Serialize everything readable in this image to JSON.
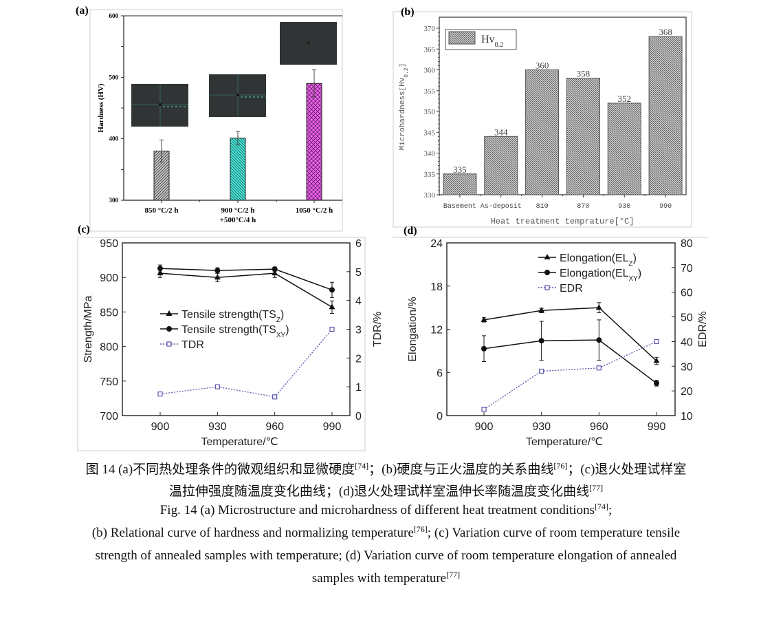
{
  "chart_data": [
    {
      "panel_label": "(a)",
      "type": "bar",
      "categories": [
        [
          "850 °C/2 h"
        ],
        [
          "900 °C/2 h",
          "+500°C/4 h"
        ],
        [
          "1050 °C/2 h"
        ]
      ],
      "values": [
        380,
        401,
        490
      ],
      "errors": [
        18,
        11,
        22
      ],
      "bar_colors": [
        "#b4b4b4",
        "#4ee6d8",
        "#f060f0"
      ],
      "patterns": [
        "diagonal",
        "diagonal-reverse",
        "crosshatch"
      ],
      "insets": [
        "micrograph",
        "micrograph",
        "micrograph"
      ],
      "ylabel": "Hardness (HV)",
      "ylim": [
        300,
        600
      ],
      "yticks": [
        300,
        400,
        500,
        600
      ]
    },
    {
      "panel_label": "(b)",
      "type": "bar",
      "categories": [
        "Basement",
        "As-deposit",
        "810",
        "870",
        "930",
        "990"
      ],
      "values": [
        335,
        344,
        360,
        358,
        352,
        368
      ],
      "data_labels": [
        "335",
        "344",
        "360",
        "358",
        "352",
        "368"
      ],
      "legend": {
        "name": "Hv",
        "sub": "0.2",
        "position": "top-left"
      },
      "xlabel": "Heat treatment temprature[°C]",
      "ylabel": {
        "main": "Microhardness[Hv",
        "sub": "0.2",
        "end": "]"
      },
      "ylim": [
        330,
        370
      ],
      "yticks": [
        330,
        335,
        340,
        345,
        350,
        355,
        360,
        365,
        370
      ],
      "bar_color": "#9a9a9a"
    },
    {
      "panel_label": "(c)",
      "type": "line",
      "x": [
        900,
        930,
        960,
        990
      ],
      "xlabel": "Temperature/℃",
      "ylabel": "Strength/MPa",
      "ylabel_right": "TDR/%",
      "ylim": [
        700,
        950
      ],
      "yticks": [
        700,
        750,
        800,
        850,
        900,
        950
      ],
      "ylim_right": [
        0,
        6
      ],
      "yticks_right": [
        0,
        1,
        2,
        3,
        4,
        5,
        6
      ],
      "legend_position": "center-left",
      "series": [
        {
          "name": "Tensile strength(TS",
          "sub": "Z",
          "end": ")",
          "marker": "triangle",
          "axis": "left",
          "values": [
            906,
            900,
            906,
            857
          ],
          "errors": [
            6,
            6,
            6,
            9
          ]
        },
        {
          "name": "Tensile strength(TS",
          "sub": "XY",
          "end": ")",
          "marker": "circle",
          "axis": "left",
          "values": [
            913,
            910,
            912,
            882
          ],
          "errors": [
            5,
            4,
            3,
            11
          ]
        },
        {
          "name": "TDR",
          "sub": "",
          "end": "",
          "marker": "square-open",
          "axis": "right",
          "color": "#5a55b0",
          "values": [
            0.75,
            1.0,
            0.65,
            3.0
          ]
        }
      ]
    },
    {
      "panel_label": "(d)",
      "type": "line",
      "x": [
        900,
        930,
        960,
        990
      ],
      "xlabel": "Temperature/℃",
      "ylabel": "Elongation/%",
      "ylabel_right": "EDR/%",
      "ylim": [
        0,
        24
      ],
      "yticks": [
        0,
        6,
        12,
        18,
        24
      ],
      "ylim_right": [
        10,
        80
      ],
      "yticks_right": [
        10,
        20,
        30,
        40,
        50,
        60,
        70,
        80
      ],
      "legend_position": "top-right",
      "series": [
        {
          "name": "Elongation(EL",
          "sub": "Z",
          "end": ")",
          "marker": "triangle",
          "axis": "left",
          "values": [
            13.3,
            14.6,
            15.0,
            7.6
          ],
          "errors": [
            0.3,
            0.3,
            0.7,
            0.5
          ]
        },
        {
          "name": "Elongation(EL",
          "sub": "XY",
          "end": ")",
          "marker": "circle",
          "axis": "left",
          "values": [
            9.3,
            10.4,
            10.5,
            4.5
          ],
          "errors": [
            1.8,
            2.7,
            2.8,
            0.4
          ]
        },
        {
          "name": "EDR",
          "sub": "",
          "end": "",
          "marker": "square-open",
          "axis": "right",
          "color": "#5a55b0",
          "values": [
            12.5,
            28,
            29.3,
            40
          ]
        }
      ]
    }
  ],
  "caption": {
    "zh1": {
      "a": "图 14 (a)不同热处理条件的微观组织和显微硬度",
      "r1": "[74]",
      "b": "；(b)硬度与正火温度的关系曲线",
      "r2": "[76]",
      "c": "；(c)退火处理试样室"
    },
    "zh2": {
      "a": "温拉伸强度随温度变化曲线；(d)退火处理试样室温伸长率随温度变化曲线",
      "r1": "[77]"
    },
    "en1": {
      "a": "Fig. 14 (a) Microstructure and microhardness of different heat treatment conditions",
      "r1": "[74]",
      "b": ";"
    },
    "en2": {
      "a": "(b) Relational curve of hardness and normalizing temperature",
      "r1": "[76]",
      "b": "; (c) Variation curve of room temperature tensile"
    },
    "en3": {
      "a": "strength of annealed samples with temperature; (d) Variation curve of room temperature elongation of annealed"
    },
    "en4": {
      "a": "samples with temperature",
      "r1": "[77]"
    }
  }
}
